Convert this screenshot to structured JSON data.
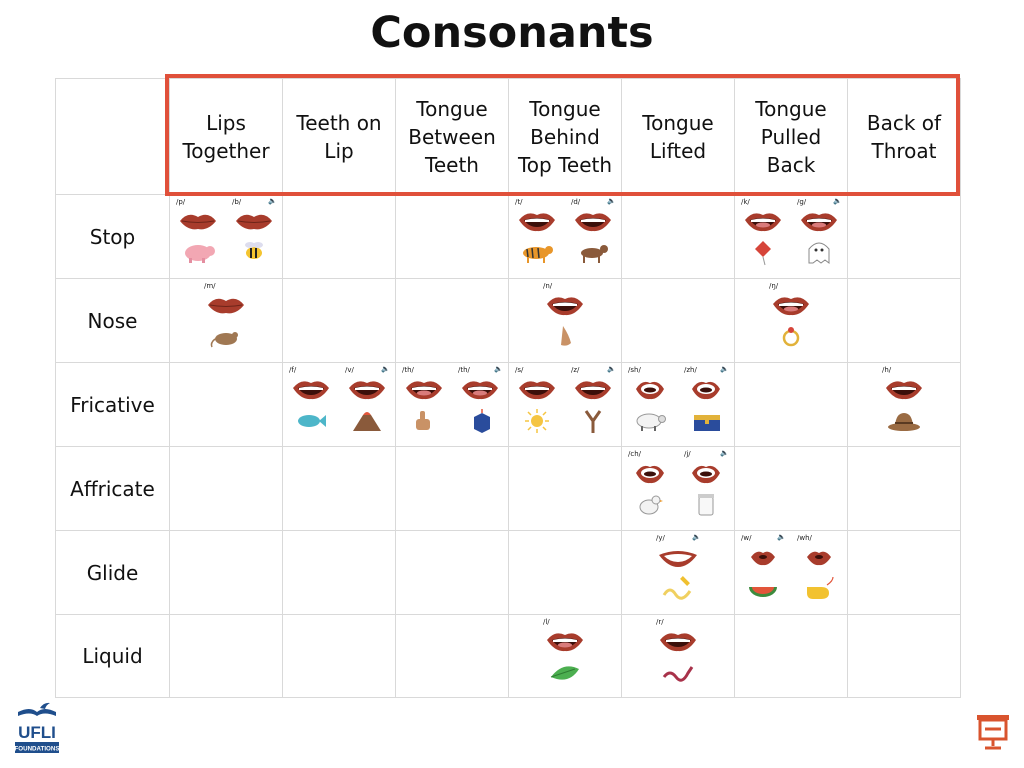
{
  "title": "Consonants",
  "columns": [
    "Lips\nTogether",
    "Teeth on\nLip",
    "Tongue\nBetween\nTeeth",
    "Tongue\nBehind\nTop Teeth",
    "Tongue\nLifted",
    "Tongue\nPulled\nBack",
    "Back of\nThroat"
  ],
  "rows": [
    {
      "label": "Stop",
      "cells": [
        [
          {
            "phoneme": "/p/",
            "mouth": "closed",
            "picture": "pig"
          },
          {
            "phoneme": "/b/",
            "mouth": "closed",
            "picture": "bee",
            "voiced": true
          }
        ],
        [],
        [],
        [
          {
            "phoneme": "/t/",
            "mouth": "open-teeth",
            "picture": "tiger"
          },
          {
            "phoneme": "/d/",
            "mouth": "open-teeth",
            "picture": "dog",
            "voiced": true
          }
        ],
        [],
        [
          {
            "phoneme": "/k/",
            "mouth": "open-tongue",
            "picture": "kite"
          },
          {
            "phoneme": "/g/",
            "mouth": "open-tongue",
            "picture": "ghost",
            "voiced": true
          }
        ],
        []
      ]
    },
    {
      "label": "Nose",
      "cells": [
        [
          {
            "phoneme": "/m/",
            "mouth": "closed",
            "picture": "mouse"
          }
        ],
        [],
        [],
        [
          {
            "phoneme": "/n/",
            "mouth": "open-teeth",
            "picture": "nose"
          }
        ],
        [],
        [
          {
            "phoneme": "/ŋ/",
            "mouth": "open-tongue",
            "picture": "ring"
          }
        ],
        []
      ]
    },
    {
      "label": "Fricative",
      "cells": [
        [],
        [
          {
            "phoneme": "/f/",
            "mouth": "lip-teeth",
            "picture": "fish"
          },
          {
            "phoneme": "/v/",
            "mouth": "lip-teeth",
            "picture": "volcano",
            "voiced": true
          }
        ],
        [
          {
            "phoneme": "/th/",
            "mouth": "tongue-out",
            "picture": "thumb"
          },
          {
            "phoneme": "/th/",
            "mouth": "tongue-out",
            "picture": "this",
            "voiced": true
          }
        ],
        [
          {
            "phoneme": "/s/",
            "mouth": "teeth",
            "picture": "sun"
          },
          {
            "phoneme": "/z/",
            "mouth": "teeth",
            "picture": "zig",
            "voiced": true
          }
        ],
        [
          {
            "phoneme": "/sh/",
            "mouth": "rounded",
            "picture": "sheep"
          },
          {
            "phoneme": "/zh/",
            "mouth": "rounded",
            "picture": "treasure",
            "voiced": true
          }
        ],
        [],
        [
          {
            "phoneme": "/h/",
            "mouth": "open-wide",
            "picture": "hat"
          }
        ]
      ]
    },
    {
      "label": "Affricate",
      "cells": [
        [],
        [],
        [],
        [],
        [
          {
            "phoneme": "/ch/",
            "mouth": "rounded",
            "picture": "chick"
          },
          {
            "phoneme": "/j/",
            "mouth": "rounded",
            "picture": "jar",
            "voiced": true
          }
        ],
        [],
        []
      ]
    },
    {
      "label": "Glide",
      "cells": [
        [],
        [],
        [],
        [],
        [
          {
            "phoneme": "/y/",
            "mouth": "wide-smile",
            "picture": "yarn",
            "voiced": true
          }
        ],
        [
          {
            "phoneme": "/w/",
            "mouth": "pucker",
            "picture": "watermelon",
            "voiced": true
          },
          {
            "phoneme": "/wh/",
            "mouth": "pucker",
            "picture": "whistle"
          }
        ],
        []
      ]
    },
    {
      "label": "Liquid",
      "cells": [
        [],
        [],
        [],
        [
          {
            "phoneme": "/l/",
            "mouth": "open-tongue",
            "picture": "leaf"
          }
        ],
        [
          {
            "phoneme": "/r/",
            "mouth": "open-teeth",
            "picture": "rope"
          }
        ],
        [],
        []
      ]
    }
  ],
  "voiced_icon": "speaker-icon",
  "logo": {
    "text": "UFLI",
    "subtext": "FOUNDATIONS"
  },
  "colors": {
    "highlight": "#e0503a",
    "lips": "#a83c2c",
    "grid": "#d9d9d9",
    "logo_blue": "#1f4e8c",
    "present": "#d9542e"
  }
}
